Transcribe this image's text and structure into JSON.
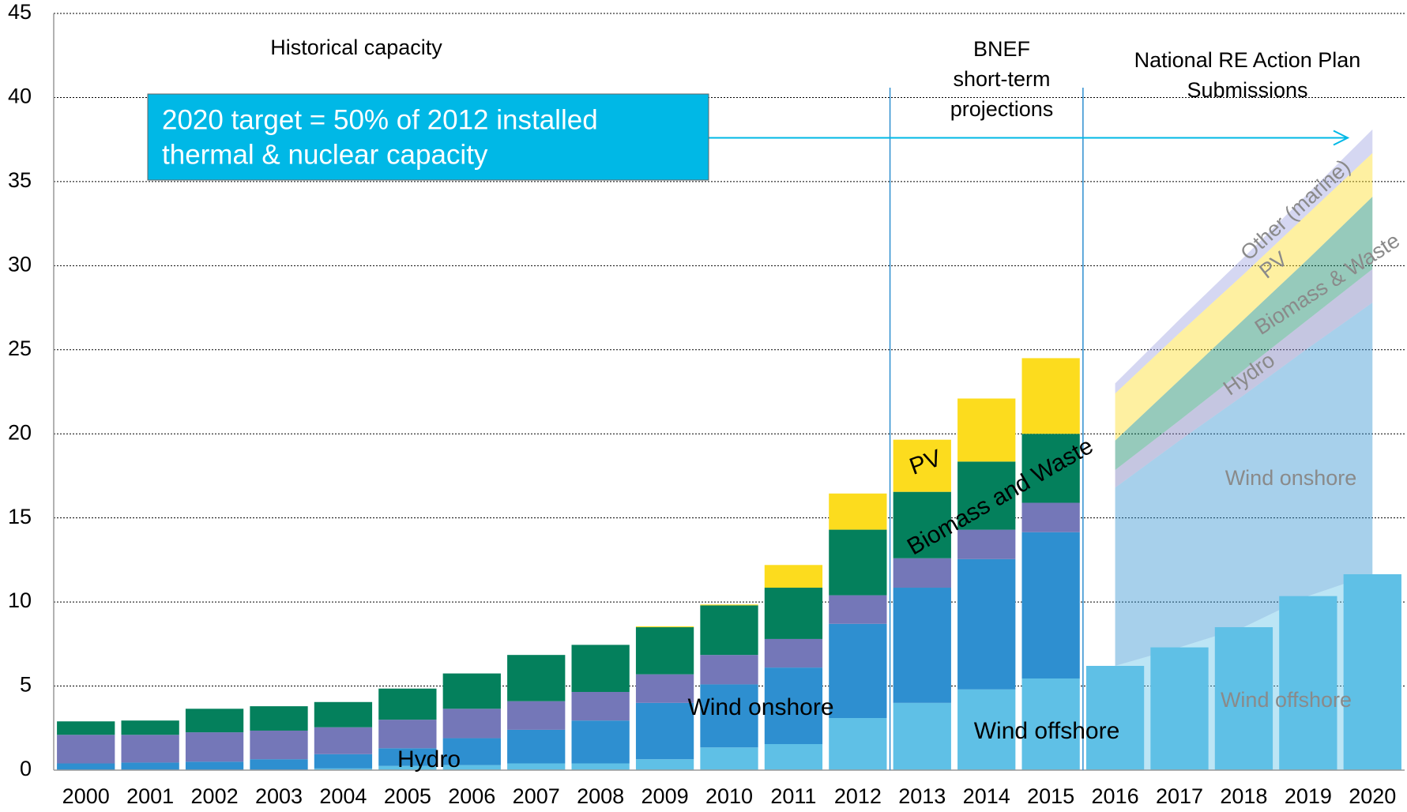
{
  "chart_data": {
    "type": "bar",
    "categories": [
      "2000",
      "2001",
      "2002",
      "2003",
      "2004",
      "2005",
      "2006",
      "2007",
      "2008",
      "2009",
      "2010",
      "2011",
      "2012",
      "2013",
      "2014",
      "2015",
      "2016",
      "2017",
      "2018",
      "2019",
      "2020"
    ],
    "area_from_category": "2016",
    "series": [
      {
        "name": "Wind offshore",
        "color": "#5fc0e6",
        "values": [
          0,
          0,
          0,
          0,
          0.1,
          0.25,
          0.3,
          0.4,
          0.4,
          0.65,
          1.35,
          1.55,
          3.1,
          4.0,
          4.8,
          5.45,
          6.2,
          7.3,
          8.5,
          10.35,
          11.65
        ]
      },
      {
        "name": "Wind onshore",
        "color": "#2e8fd0",
        "values": [
          0.4,
          0.45,
          0.5,
          0.65,
          0.85,
          1.05,
          1.6,
          2.0,
          2.55,
          3.35,
          3.75,
          4.55,
          5.6,
          6.85,
          7.75,
          8.7,
          10.6,
          12.3,
          13.8,
          14.75,
          16.15
        ]
      },
      {
        "name": "Hydro",
        "color": "#7477b8",
        "values": [
          1.7,
          1.65,
          1.75,
          1.7,
          1.6,
          1.7,
          1.75,
          1.7,
          1.7,
          1.7,
          1.75,
          1.7,
          1.7,
          1.75,
          1.75,
          1.75,
          1.05,
          1.2,
          1.5,
          1.7,
          2.0
        ]
      },
      {
        "name": "Biomass and Waste",
        "color": "#04805c",
        "values": [
          0.8,
          0.85,
          1.4,
          1.45,
          1.5,
          1.85,
          2.1,
          2.75,
          2.8,
          2.8,
          2.95,
          3.05,
          3.9,
          3.95,
          4.05,
          4.1,
          1.75,
          2.4,
          3.0,
          3.6,
          4.3
        ]
      },
      {
        "name": "PV",
        "color": "#fcdc1e",
        "values": [
          0,
          0,
          0,
          0,
          0,
          0,
          0,
          0,
          0,
          0.05,
          0.05,
          1.35,
          2.15,
          3.1,
          3.75,
          4.5,
          2.8,
          2.8,
          2.7,
          2.7,
          2.6
        ]
      },
      {
        "name": "Other (marine)",
        "color": "#9b9fe0",
        "values": [
          null,
          null,
          null,
          null,
          null,
          null,
          null,
          null,
          null,
          null,
          null,
          null,
          null,
          null,
          null,
          null,
          0.6,
          0.8,
          1.0,
          1.2,
          1.4
        ]
      }
    ],
    "ylim": [
      0,
      45
    ],
    "yticks": [
      0,
      5,
      10,
      15,
      20,
      25,
      30,
      35,
      40,
      45
    ],
    "grid": true,
    "periods": [
      {
        "label": [
          "Historical capacity"
        ],
        "from": "2000"
      },
      {
        "label": [
          "BNEF",
          "short-term",
          "projections"
        ],
        "from": "2013"
      },
      {
        "label": [
          "National RE Action Plan",
          "Submissions"
        ],
        "from": "2016"
      }
    ],
    "target": {
      "label": [
        "2020 target = 50% of 2012 installed",
        "thermal & nuclear capacity"
      ],
      "value": 37.6,
      "color": "#00b8e6"
    },
    "area_labels": [
      "Other (marine)",
      "PV",
      "Biomass & Waste",
      "Hydro",
      "Wind onshore",
      "Wind offshore"
    ]
  }
}
